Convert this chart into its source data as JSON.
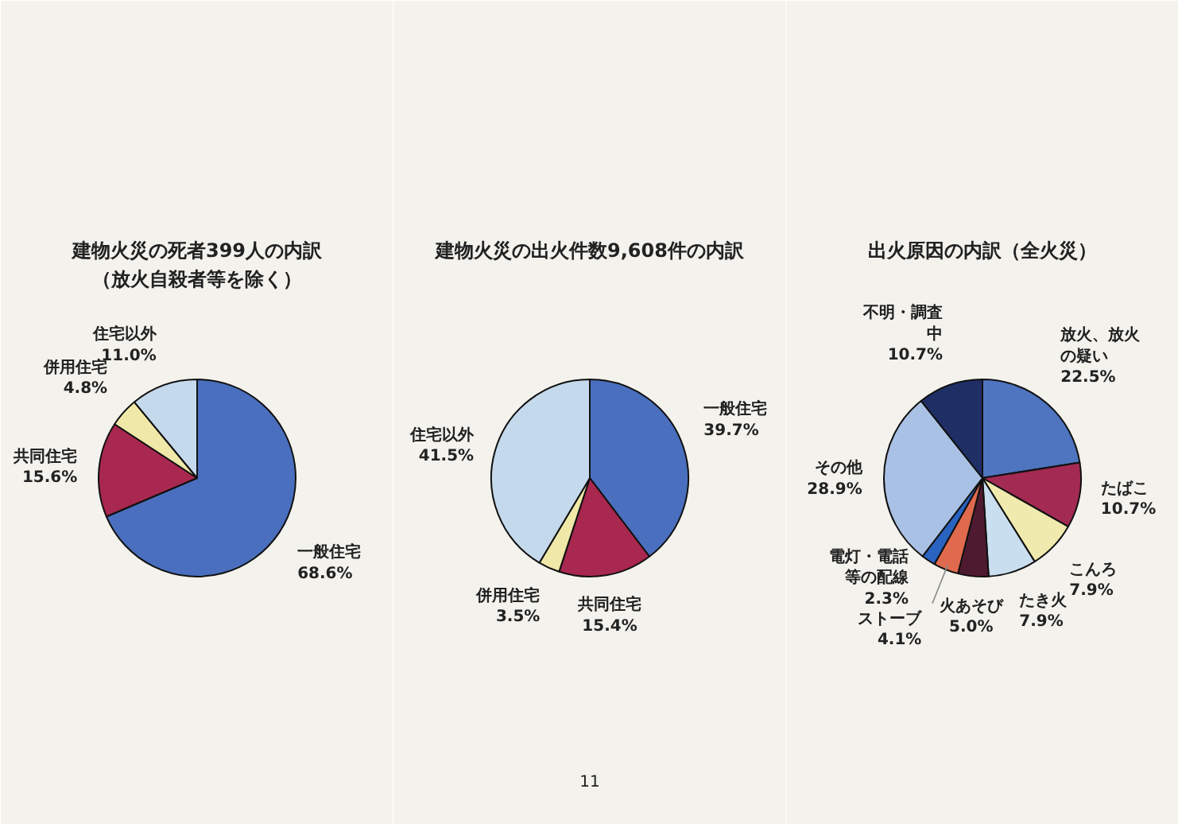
{
  "chart_data": [
    {
      "type": "pie",
      "title": "建物火災の死者399人の内訳",
      "subtitle": "（放火自殺者等を除く）",
      "categories": [
        "一般住宅",
        "共同住宅",
        "併用住宅",
        "住宅以外"
      ],
      "values": [
        68.6,
        15.6,
        4.8,
        11.0
      ],
      "value_labels": [
        "68.6%",
        "15.6%",
        "4.8%",
        "11.0%"
      ],
      "colors": [
        "#4a6fbe",
        "#a8284f",
        "#efe8a8",
        "#c5d9ec"
      ]
    },
    {
      "type": "pie",
      "title": "建物火災の出火件数9,608件の内訳",
      "categories": [
        "一般住宅",
        "共同住宅",
        "併用住宅",
        "住宅以外"
      ],
      "values": [
        39.7,
        15.4,
        3.5,
        41.5
      ],
      "value_labels": [
        "39.7%",
        "15.4%",
        "3.5%",
        "41.5%"
      ],
      "colors": [
        "#4a6fbe",
        "#a8284f",
        "#efe8a8",
        "#c5d9ec"
      ],
      "annotations": [
        "11"
      ]
    },
    {
      "type": "pie",
      "title": "出火原因の内訳（全火災）",
      "categories": [
        "放火、放火の疑い",
        "たばこ",
        "こんろ",
        "たき火",
        "火あそび",
        "ストーブ",
        "電灯・電話等の配線",
        "その他",
        "不明・調査中"
      ],
      "values": [
        22.5,
        10.7,
        7.9,
        7.9,
        5.0,
        4.1,
        2.3,
        28.9,
        10.7
      ],
      "value_labels": [
        "22.5%",
        "10.7%",
        "7.9%",
        "7.9%",
        "5.0%",
        "4.1%",
        "2.3%",
        "28.9%",
        "10.7%"
      ],
      "colors": [
        "#4f74c0",
        "#a32a52",
        "#f1eaae",
        "#c9deee",
        "#4e1a30",
        "#e06a4e",
        "#2a63c0",
        "#a9c1e4",
        "#1f2f66"
      ]
    }
  ]
}
